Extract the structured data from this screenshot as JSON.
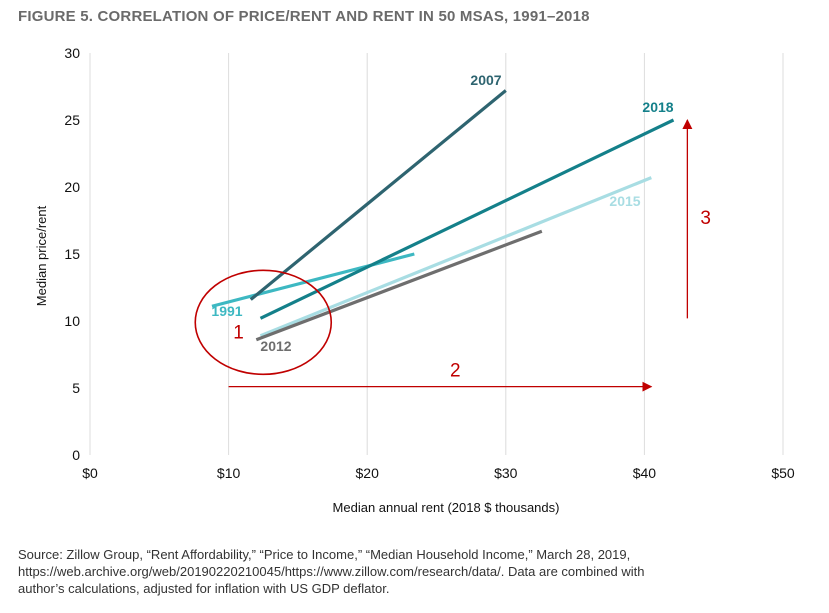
{
  "figure": {
    "title": "FIGURE 5. CORRELATION OF PRICE/RENT AND RENT IN 50 MSAS, 1991–2018",
    "source_lines": [
      "Source: Zillow Group, “Rent Affordability,” “Price to Income,” “Median Household Income,” March 28, 2019,",
      "https://web.archive.org/web/20190220210045/https://www.zillow.com/research/data/. Data are combined with",
      "author’s calculations, adjusted for inflation with US GDP deflator."
    ]
  },
  "chart_data": {
    "type": "line",
    "title": "",
    "xlabel": "Median annual rent (2018 $ thousands)",
    "ylabel": "Median price/rent",
    "xlim": [
      0,
      50
    ],
    "ylim": [
      0,
      30
    ],
    "x_ticks": [
      0,
      10,
      20,
      30,
      40,
      50
    ],
    "x_tick_labels": [
      "$0",
      "$10",
      "$20",
      "$30",
      "$40",
      "$50"
    ],
    "y_ticks": [
      0,
      5,
      10,
      15,
      20,
      25,
      30
    ],
    "y_tick_labels": [
      "0",
      "5",
      "10",
      "15",
      "20",
      "25",
      "30"
    ],
    "grid": "vertical",
    "series": [
      {
        "name": "1991",
        "color": "#3db8c2",
        "points": [
          [
            8.8,
            11.1
          ],
          [
            23.4,
            15.0
          ]
        ]
      },
      {
        "name": "2007",
        "color": "#2e6470",
        "points": [
          [
            11.6,
            11.6
          ],
          [
            30.0,
            27.2
          ]
        ]
      },
      {
        "name": "2018",
        "color": "#14808a",
        "points": [
          [
            12.3,
            10.2
          ],
          [
            42.1,
            25.0
          ]
        ]
      },
      {
        "name": "2015",
        "color": "#a8dde3",
        "points": [
          [
            12.3,
            8.9
          ],
          [
            40.5,
            20.7
          ]
        ]
      },
      {
        "name": "2012",
        "color": "#6e6e6e",
        "points": [
          [
            12.0,
            8.6
          ],
          [
            32.6,
            16.7
          ]
        ]
      }
    ],
    "annotations": [
      {
        "label": "1",
        "shape": "circle",
        "color": "#c00000",
        "center": [
          12.5,
          9.9
        ]
      },
      {
        "label": "2",
        "shape": "arrow-right",
        "color": "#c00000",
        "from": [
          10.0,
          5.1
        ],
        "to": [
          40.5,
          5.1
        ]
      },
      {
        "label": "3",
        "shape": "arrow-up",
        "color": "#c00000",
        "from": [
          43.1,
          10.2
        ],
        "to": [
          43.1,
          25.0
        ]
      }
    ]
  }
}
